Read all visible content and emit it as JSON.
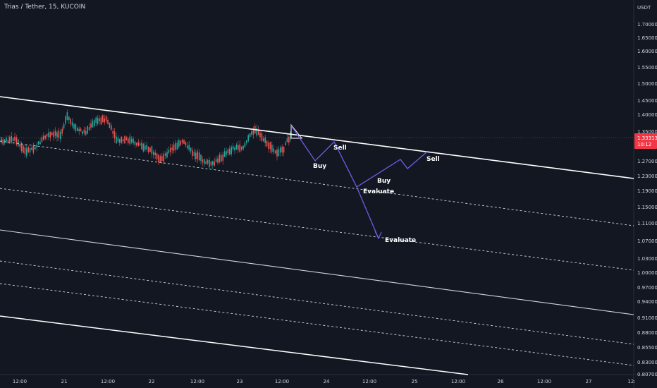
{
  "header": {
    "symbol_line": "Trias / Tether, 15, KUCOIN",
    "currency": "USDT"
  },
  "price_axis": {
    "labels": [
      "1.70000",
      "1.65000",
      "1.60000",
      "1.55000",
      "1.50000",
      "1.45000",
      "1.40000",
      "1.35000",
      "1.27000",
      "1.23000",
      "1.19000",
      "1.15000",
      "1.11000",
      "1.07000",
      "1.03000",
      "1.00000",
      "0.97000",
      "0.94000",
      "0.91000",
      "0.88000",
      "0.85500",
      "0.83000",
      "0.80700"
    ],
    "current_price": "1.33313",
    "countdown": "10:12",
    "current_color": "#f23645"
  },
  "time_axis": {
    "labels": [
      "12:00",
      "21",
      "12:00",
      "22",
      "12:00",
      "23",
      "12:00",
      "24",
      "12:00",
      "25",
      "12:00",
      "26",
      "12:00",
      "27",
      "12:"
    ]
  },
  "annotations": {
    "buy_1": "Buy",
    "sell_1": "Sell",
    "evaluate_1": "Evaluate",
    "buy_2": "Buy",
    "sell_2": "Sell",
    "evaluate_2": "Evaluate"
  },
  "colors": {
    "background": "#131722",
    "up_candle": "#26a69a",
    "down_candle": "#ef5350",
    "projection": "#6c5ce7",
    "channel_line": "#ffffff"
  },
  "chart_data": {
    "type": "candlestick",
    "series": [
      {
        "name": "Trias / Tether, 15, KUCOIN"
      }
    ],
    "last_price": 1.33313,
    "projection_path_prices": [
      1.36,
      1.34,
      1.27,
      1.33,
      1.19,
      1.07
    ],
    "yrange": [
      0.807,
      1.72
    ]
  }
}
